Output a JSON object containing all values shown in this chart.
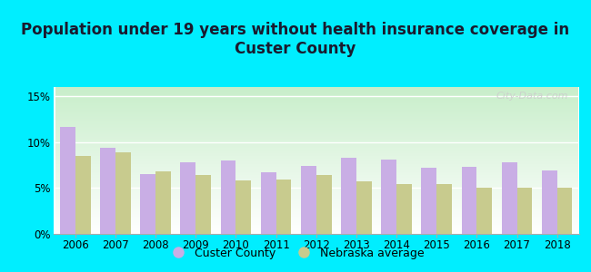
{
  "title": "Population under 19 years without health insurance coverage in\nCuster County",
  "years": [
    2006,
    2007,
    2008,
    2009,
    2010,
    2011,
    2012,
    2013,
    2014,
    2015,
    2016,
    2017,
    2018
  ],
  "custer_values": [
    11.7,
    9.4,
    6.5,
    7.8,
    8.0,
    6.7,
    7.4,
    8.3,
    8.1,
    7.2,
    7.3,
    7.8,
    6.9
  ],
  "nebraska_values": [
    8.5,
    8.9,
    6.8,
    6.4,
    5.8,
    5.9,
    6.4,
    5.7,
    5.4,
    5.4,
    5.0,
    5.0,
    5.0
  ],
  "custer_color": "#c9aee5",
  "nebraska_color": "#c8cb8e",
  "bg_outer": "#00eeff",
  "bg_plot_grad_top": "#c8eeca",
  "bg_plot_grad_bottom": "#ffffff",
  "ylim_max": 16,
  "yticks": [
    0,
    5,
    10,
    15
  ],
  "ytick_labels": [
    "0%",
    "5%",
    "10%",
    "15%"
  ],
  "legend_custer": "Custer County",
  "legend_nebraska": "Nebraska average",
  "bar_width": 0.38,
  "title_fontsize": 12,
  "tick_fontsize": 8.5,
  "legend_fontsize": 9,
  "watermark": "City-Data.com"
}
